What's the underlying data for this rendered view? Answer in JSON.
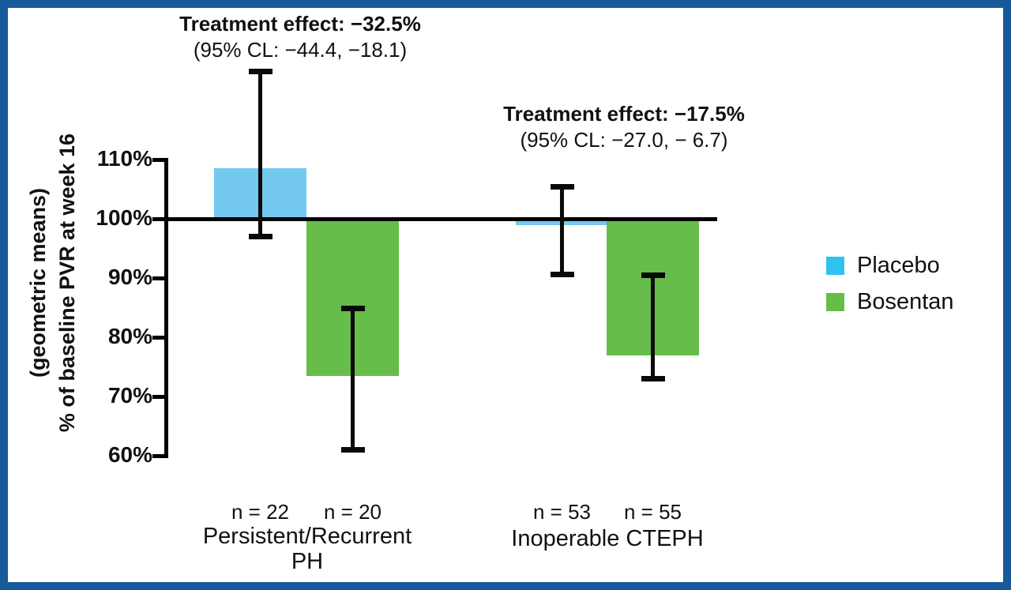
{
  "chart_data": {
    "type": "bar",
    "title": "",
    "ylabel": "% of baseline PVR at week 16 (geometric means)",
    "ylabel_line1": "(geometric means)",
    "ylabel_line2": "% of baseline PVR at week 16",
    "ylim": [
      60,
      110
    ],
    "baseline_value": 100,
    "grid": false,
    "legend_position": "right",
    "ytick_labels": [
      "110%",
      "100%",
      "90%",
      "80%",
      "70%",
      "60%"
    ],
    "ytick_values": [
      110,
      100,
      90,
      80,
      70,
      60
    ],
    "categories": [
      "Persistent/Recurrent PH",
      "Inoperable CTEPH"
    ],
    "series": [
      {
        "name": "Placebo",
        "color": "#74C9F1",
        "values": [
          108.5,
          99
        ],
        "ci_low": [
          97,
          90.5
        ],
        "ci_high": [
          125,
          105.5
        ],
        "n_labels": [
          "n = 22",
          "n = 53"
        ]
      },
      {
        "name": "Bosentan",
        "color": "#67BD4A",
        "values": [
          73.5,
          77
        ],
        "ci_low": [
          61,
          73
        ],
        "ci_high": [
          85,
          90.5
        ],
        "n_labels": [
          "n = 20",
          "n = 55"
        ]
      }
    ],
    "annotations": [
      {
        "line1": "Treatment effect: −32.5%",
        "line2": "(95% CL: −44.4, −18.1)"
      },
      {
        "line1": "Treatment effect: −17.5%",
        "line2": "(95% CL: −27.0, − 6.7)"
      }
    ]
  },
  "legend": {
    "items": [
      {
        "label": "Placebo",
        "color": "#2EC3EE"
      },
      {
        "label": "Bosentan",
        "color": "#67BD4A"
      }
    ]
  }
}
